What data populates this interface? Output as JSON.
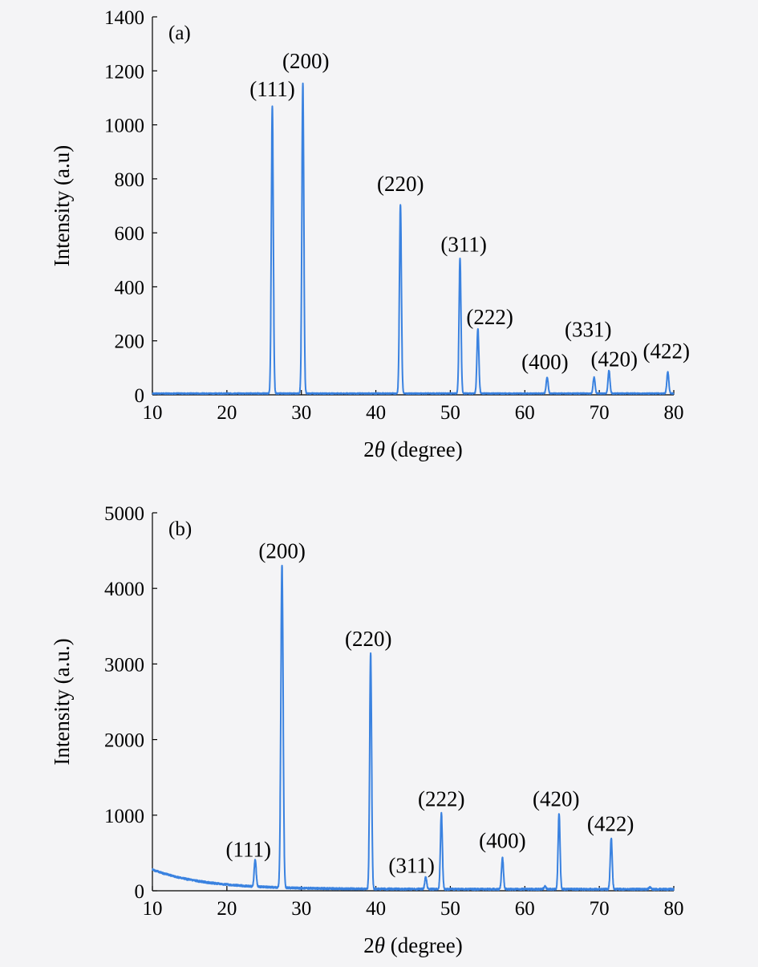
{
  "colors": {
    "series": "#3a82e0",
    "background": "#f4f4f6",
    "axis": "#000000"
  },
  "chart_data": [
    {
      "type": "line",
      "panel_label": "(a)",
      "xlabel_prefix": "2",
      "xlabel_symbol": "θ",
      "xlabel_suffix": " (degree)",
      "ylabel": "Intensity (a.u)",
      "xlim": [
        10,
        80
      ],
      "ylim": [
        0,
        1400
      ],
      "x_ticks": [
        10,
        20,
        30,
        40,
        50,
        60,
        70,
        80
      ],
      "y_ticks": [
        0,
        200,
        400,
        600,
        800,
        1000,
        1200,
        1400
      ],
      "grid": false,
      "legend": "none",
      "baseline": 5,
      "noise": 2,
      "peaks": [
        {
          "x": 26.1,
          "y": 1065,
          "w": 0.13
        },
        {
          "x": 30.2,
          "y": 1150,
          "w": 0.13
        },
        {
          "x": 43.3,
          "y": 700,
          "w": 0.13
        },
        {
          "x": 51.3,
          "y": 500,
          "w": 0.13
        },
        {
          "x": 53.7,
          "y": 240,
          "w": 0.13
        },
        {
          "x": 63.0,
          "y": 60,
          "w": 0.13
        },
        {
          "x": 69.3,
          "y": 60,
          "w": 0.13
        },
        {
          "x": 71.3,
          "y": 85,
          "w": 0.13
        },
        {
          "x": 79.2,
          "y": 80,
          "w": 0.13
        }
      ],
      "annotations": [
        {
          "text": "(111)",
          "x": 26.1,
          "y": 1105
        },
        {
          "text": "(200)",
          "x": 30.6,
          "y": 1210
        },
        {
          "text": "(220)",
          "x": 43.3,
          "y": 755
        },
        {
          "text": "(311)",
          "x": 51.8,
          "y": 530
        },
        {
          "text": "(222)",
          "x": 55.3,
          "y": 262
        },
        {
          "text": "(400)",
          "x": 62.7,
          "y": 95
        },
        {
          "text": "(331)",
          "x": 68.5,
          "y": 215
        },
        {
          "text": "(420)",
          "x": 72.0,
          "y": 105
        },
        {
          "text": "(422)",
          "x": 79.0,
          "y": 135
        }
      ]
    },
    {
      "type": "line",
      "panel_label": "(b)",
      "xlabel_prefix": "2",
      "xlabel_symbol": "θ",
      "xlabel_suffix": " (degree)",
      "ylabel": "Intensity (a.u.)",
      "xlim": [
        10,
        80
      ],
      "ylim": [
        0,
        5000
      ],
      "x_ticks": [
        10,
        20,
        30,
        40,
        50,
        60,
        70,
        80
      ],
      "y_ticks": [
        0,
        1000,
        2000,
        3000,
        4000,
        5000
      ],
      "grid": false,
      "legend": "none",
      "baseline": 20,
      "decay_amp": 260,
      "decay_len": 7,
      "noise": 12,
      "peaks": [
        {
          "x": 23.8,
          "y": 360,
          "w": 0.13
        },
        {
          "x": 27.4,
          "y": 4270,
          "w": 0.15
        },
        {
          "x": 39.3,
          "y": 3110,
          "w": 0.13
        },
        {
          "x": 46.7,
          "y": 160,
          "w": 0.13
        },
        {
          "x": 48.8,
          "y": 1000,
          "w": 0.13
        },
        {
          "x": 57.0,
          "y": 420,
          "w": 0.13
        },
        {
          "x": 62.7,
          "y": 40,
          "w": 0.13
        },
        {
          "x": 64.6,
          "y": 1000,
          "w": 0.13
        },
        {
          "x": 71.6,
          "y": 680,
          "w": 0.13
        },
        {
          "x": 76.8,
          "y": 25,
          "w": 0.13
        }
      ],
      "annotations": [
        {
          "text": "(111)",
          "x": 22.9,
          "y": 450
        },
        {
          "text": "(200)",
          "x": 27.4,
          "y": 4400
        },
        {
          "text": "(220)",
          "x": 39.0,
          "y": 3240
        },
        {
          "text": "(311)",
          "x": 44.8,
          "y": 240
        },
        {
          "text": "(222)",
          "x": 48.8,
          "y": 1120
        },
        {
          "text": "(400)",
          "x": 57.0,
          "y": 570
        },
        {
          "text": "(420)",
          "x": 64.2,
          "y": 1120
        },
        {
          "text": "(422)",
          "x": 71.5,
          "y": 790
        }
      ]
    }
  ]
}
